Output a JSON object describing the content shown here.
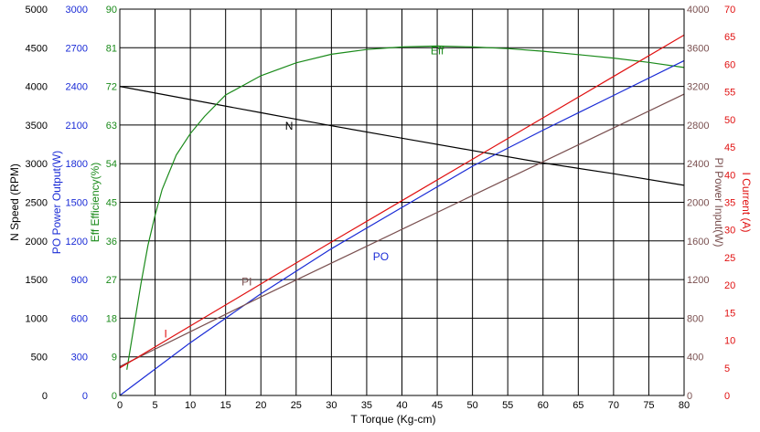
{
  "chart_data": {
    "type": "line",
    "title": "",
    "grid": true,
    "x_axis": {
      "label_letter": "T",
      "label": "Torque (Kg-cm)",
      "range": [
        0,
        80
      ],
      "ticks": [
        "0",
        "5",
        "10",
        "15",
        "20",
        "25",
        "30",
        "35",
        "40",
        "45",
        "50",
        "55",
        "60",
        "65",
        "70",
        "75",
        "80"
      ]
    },
    "y_axes": [
      {
        "id": "N",
        "letter": "N",
        "label": "Speed (RPM)",
        "color": "#000000",
        "side": "left",
        "range": [
          0,
          5000
        ],
        "ticks": [
          "0",
          "500",
          "1000",
          "1500",
          "2000",
          "2500",
          "3000",
          "3500",
          "4000",
          "4500",
          "5000"
        ]
      },
      {
        "id": "PO",
        "letter": "PO",
        "label": "Power Output(W)",
        "color": "#1a2bd6",
        "side": "left",
        "range": [
          0,
          3000
        ],
        "ticks": [
          "0",
          "300",
          "600",
          "900",
          "1200",
          "1500",
          "1800",
          "2100",
          "2400",
          "2700",
          "3000"
        ]
      },
      {
        "id": "Eff",
        "letter": "Eff",
        "label": "Efficiency(%)",
        "color": "#1a8a1a",
        "side": "left",
        "range": [
          0,
          90
        ],
        "ticks": [
          "0",
          "9",
          "18",
          "27",
          "36",
          "45",
          "54",
          "63",
          "72",
          "81",
          "90"
        ]
      },
      {
        "id": "PI",
        "letter": "PI",
        "label": "Power Input(W)",
        "color": "#7a5050",
        "side": "right",
        "range": [
          0,
          4000
        ],
        "ticks": [
          "0",
          "400",
          "800",
          "1200",
          "1600",
          "2000",
          "2400",
          "2800",
          "3200",
          "3600",
          "4000"
        ]
      },
      {
        "id": "I",
        "letter": "I",
        "label": "Current (A)",
        "color": "#e01010",
        "side": "right",
        "range": [
          0,
          70
        ],
        "ticks": [
          "0",
          "5",
          "10",
          "15",
          "20",
          "25",
          "30",
          "35",
          "40",
          "45",
          "50",
          "55",
          "60",
          "65",
          "70"
        ]
      }
    ],
    "series": [
      {
        "name": "N",
        "axis": "N",
        "color": "#000000",
        "x": [
          0,
          10,
          20,
          30,
          40,
          50,
          60,
          70,
          80
        ],
        "y": [
          4000,
          3830,
          3660,
          3490,
          3330,
          3170,
          3010,
          2870,
          2720
        ]
      },
      {
        "name": "Eff",
        "axis": "Eff",
        "color": "#1a8a1a",
        "x": [
          1,
          2,
          3,
          4,
          5,
          6,
          8,
          10,
          12,
          15,
          20,
          25,
          30,
          35,
          40,
          45,
          50,
          55,
          60,
          65,
          70,
          75,
          80
        ],
        "y": [
          6,
          16,
          26,
          35,
          42,
          48,
          56,
          61,
          65,
          70,
          74.5,
          77.5,
          79.5,
          80.6,
          81.2,
          81.4,
          81.2,
          80.8,
          80.2,
          79.4,
          78.6,
          77.6,
          76.4
        ]
      },
      {
        "name": "PO",
        "axis": "PO",
        "color": "#1a2bd6",
        "x": [
          0,
          10,
          20,
          30,
          40,
          50,
          60,
          70,
          80
        ],
        "y": [
          0,
          410,
          790,
          1140,
          1460,
          1780,
          2060,
          2330,
          2600
        ]
      },
      {
        "name": "PI",
        "axis": "PI",
        "color": "#7a5050",
        "x": [
          0,
          10,
          20,
          30,
          40,
          50,
          60,
          70,
          80
        ],
        "y": [
          300,
          660,
          1020,
          1370,
          1720,
          2070,
          2420,
          2770,
          3120
        ]
      },
      {
        "name": "I",
        "axis": "I",
        "color": "#e01010",
        "x": [
          0,
          10,
          20,
          30,
          40,
          50,
          60,
          70,
          80
        ],
        "y": [
          5,
          12.6,
          20.2,
          27.8,
          35.3,
          42.8,
          50.3,
          57.8,
          65.3
        ]
      }
    ],
    "series_labels": [
      {
        "text": "N",
        "series": "N",
        "x": 24,
        "y": 3440
      },
      {
        "text": "Eff",
        "series": "Eff",
        "x": 45,
        "y": 79.5
      },
      {
        "text": "PO",
        "series": "PO",
        "x": 37,
        "y": 1050
      },
      {
        "text": "PI",
        "series": "PI",
        "x": 18,
        "y": 1140
      },
      {
        "text": "I",
        "series": "I",
        "x": 6.5,
        "y": 10.5
      }
    ]
  }
}
